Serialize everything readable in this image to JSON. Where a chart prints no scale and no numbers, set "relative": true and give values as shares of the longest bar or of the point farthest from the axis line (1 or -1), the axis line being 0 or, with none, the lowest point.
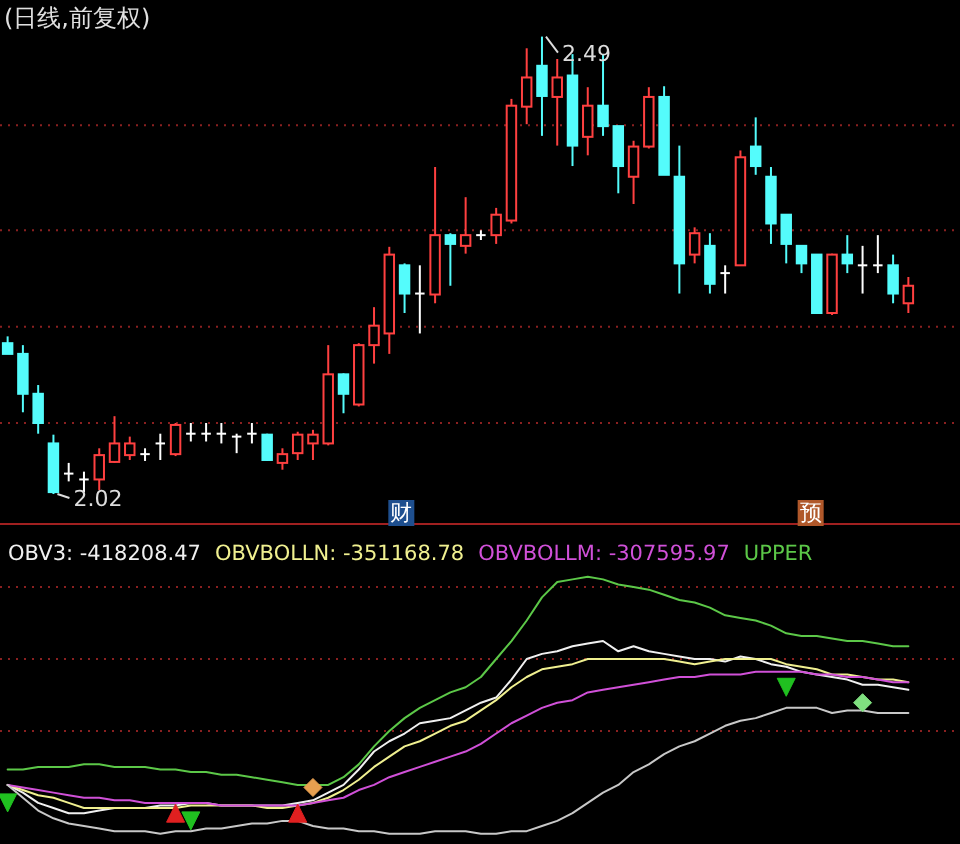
{
  "chart_data": [
    {
      "type": "candlestick",
      "title": "(日线,前复权)",
      "categories": [
        null,
        null,
        null,
        null,
        null,
        null,
        null,
        null,
        null,
        null,
        null,
        null,
        null,
        null,
        null,
        null,
        null,
        null,
        null,
        null,
        null,
        null,
        null,
        null,
        null,
        null,
        null,
        null,
        null,
        null,
        null,
        null,
        null,
        null,
        null,
        null,
        null,
        null,
        null,
        null,
        null,
        null,
        null,
        null,
        null,
        null,
        null,
        null,
        null,
        null,
        null,
        null,
        null,
        null,
        null,
        null,
        null,
        null,
        null,
        null
      ],
      "ohlc": [
        [
          2.175,
          2.182,
          2.164,
          2.164
        ],
        [
          2.164,
          2.173,
          2.104,
          2.123
        ],
        [
          2.123,
          2.132,
          2.082,
          2.093
        ],
        [
          2.072,
          2.081,
          2.02,
          2.022
        ],
        [
          2.041,
          2.052,
          2.033,
          2.041
        ],
        [
          2.035,
          2.043,
          2.022,
          2.035
        ],
        [
          2.035,
          2.067,
          2.024,
          2.06
        ],
        [
          2.053,
          2.1,
          2.052,
          2.072
        ],
        [
          2.06,
          2.079,
          2.055,
          2.072
        ],
        [
          2.061,
          2.067,
          2.054,
          2.061
        ],
        [
          2.072,
          2.082,
          2.055,
          2.072
        ],
        [
          2.061,
          2.093,
          2.059,
          2.091
        ],
        [
          2.082,
          2.093,
          2.074,
          2.082
        ],
        [
          2.082,
          2.093,
          2.074,
          2.082
        ],
        [
          2.082,
          2.093,
          2.072,
          2.082
        ],
        [
          2.079,
          2.082,
          2.062,
          2.079
        ],
        [
          2.082,
          2.093,
          2.072,
          2.082
        ],
        [
          2.081,
          2.082,
          2.054,
          2.055
        ],
        [
          2.052,
          2.067,
          2.045,
          2.061
        ],
        [
          2.062,
          2.084,
          2.055,
          2.081
        ],
        [
          2.072,
          2.086,
          2.055,
          2.081
        ],
        [
          2.072,
          2.173,
          2.07,
          2.143
        ],
        [
          2.143,
          2.144,
          2.103,
          2.123
        ],
        [
          2.112,
          2.175,
          2.11,
          2.173
        ],
        [
          2.173,
          2.212,
          2.154,
          2.193
        ],
        [
          2.185,
          2.274,
          2.164,
          2.266
        ],
        [
          2.255,
          2.257,
          2.206,
          2.226
        ],
        [
          2.226,
          2.255,
          2.185,
          2.226
        ],
        [
          2.225,
          2.356,
          2.216,
          2.286
        ],
        [
          2.286,
          2.288,
          2.234,
          2.277
        ],
        [
          2.275,
          2.325,
          2.267,
          2.286
        ],
        [
          2.286,
          2.291,
          2.281,
          2.286
        ],
        [
          2.286,
          2.314,
          2.277,
          2.307
        ],
        [
          2.301,
          2.426,
          2.298,
          2.419
        ],
        [
          2.418,
          2.478,
          2.4,
          2.448
        ],
        [
          2.46,
          2.49,
          2.388,
          2.429
        ],
        [
          2.428,
          2.467,
          2.378,
          2.448
        ],
        [
          2.45,
          2.472,
          2.357,
          2.378
        ],
        [
          2.387,
          2.438,
          2.368,
          2.419
        ],
        [
          2.419,
          2.472,
          2.388,
          2.398
        ],
        [
          2.398,
          2.398,
          2.329,
          2.357
        ],
        [
          2.346,
          2.383,
          2.318,
          2.377
        ],
        [
          2.377,
          2.438,
          2.375,
          2.428
        ],
        [
          2.428,
          2.439,
          2.348,
          2.348
        ],
        [
          2.346,
          2.378,
          2.226,
          2.257
        ],
        [
          2.266,
          2.294,
          2.257,
          2.288
        ],
        [
          2.275,
          2.288,
          2.226,
          2.236
        ],
        [
          2.247,
          2.255,
          2.226,
          2.247
        ],
        [
          2.255,
          2.373,
          2.255,
          2.366
        ],
        [
          2.377,
          2.407,
          2.348,
          2.357
        ],
        [
          2.346,
          2.356,
          2.277,
          2.298
        ],
        [
          2.307,
          2.307,
          2.257,
          2.277
        ],
        [
          2.275,
          2.275,
          2.247,
          2.257
        ],
        [
          2.266,
          2.266,
          2.206,
          2.206
        ],
        [
          2.206,
          2.267,
          2.204,
          2.266
        ],
        [
          2.266,
          2.286,
          2.247,
          2.257
        ],
        [
          2.255,
          2.275,
          2.226,
          2.255
        ],
        [
          2.255,
          2.286,
          2.247,
          2.255
        ],
        [
          2.255,
          2.266,
          2.216,
          2.226
        ],
        [
          2.216,
          2.243,
          2.206,
          2.234
        ]
      ],
      "yticks": [
        {
          "value": 2.399,
          "label": null
        },
        {
          "value": 2.291,
          "label": null
        },
        {
          "value": 2.192,
          "label": null
        },
        {
          "value": 2.093,
          "label": null
        }
      ],
      "grid": true,
      "annotations": [
        "2.49",
        "2.02",
        "财",
        "预"
      ]
    },
    {
      "type": "line",
      "relative": true,
      "legend": "top",
      "ref_lines": [
        {
          "axis": "y",
          "value": 0.96,
          "color": "#8a2020",
          "line_style": "dotted"
        },
        {
          "axis": "y",
          "value": 0.68,
          "color": "#8a2020",
          "line_style": "dotted"
        },
        {
          "axis": "y",
          "value": 0.4,
          "color": "#8a2020",
          "line_style": "dotted"
        }
      ],
      "categories": [
        null,
        null,
        null,
        null,
        null,
        null,
        null,
        null,
        null,
        null,
        null,
        null,
        null,
        null,
        null,
        null,
        null,
        null,
        null,
        null,
        null,
        null,
        null,
        null,
        null,
        null,
        null,
        null,
        null,
        null,
        null,
        null,
        null,
        null,
        null,
        null,
        null,
        null,
        null,
        null,
        null,
        null,
        null,
        null,
        null,
        null,
        null,
        null,
        null,
        null,
        null,
        null,
        null,
        null,
        null,
        null,
        null,
        null,
        null,
        null
      ],
      "series": [
        {
          "name": "OBV3: -418208.47",
          "color": "#f0f0f0",
          "values": [
            0.19,
            0.16,
            0.12,
            0.1,
            0.08,
            0.08,
            0.09,
            0.1,
            0.1,
            0.1,
            0.11,
            0.11,
            0.12,
            0.12,
            0.11,
            0.11,
            0.11,
            0.11,
            0.11,
            0.12,
            0.13,
            0.16,
            0.19,
            0.25,
            0.32,
            0.36,
            0.39,
            0.43,
            0.44,
            0.45,
            0.48,
            0.51,
            0.53,
            0.6,
            0.68,
            0.7,
            0.71,
            0.73,
            0.74,
            0.75,
            0.71,
            0.73,
            0.71,
            0.7,
            0.69,
            0.68,
            0.68,
            0.67,
            0.69,
            0.68,
            0.66,
            0.65,
            0.63,
            0.62,
            0.61,
            0.6,
            0.58,
            0.58,
            0.57,
            0.56
          ]
        },
        {
          "name": "OBVBOLLN: -351168.78",
          "color": "#f0f090",
          "values": [
            0.19,
            0.17,
            0.15,
            0.14,
            0.12,
            0.1,
            0.1,
            0.1,
            0.1,
            0.1,
            0.1,
            0.1,
            0.11,
            0.11,
            0.11,
            0.11,
            0.11,
            0.1,
            0.1,
            0.11,
            0.12,
            0.14,
            0.17,
            0.21,
            0.26,
            0.3,
            0.34,
            0.36,
            0.39,
            0.42,
            0.44,
            0.48,
            0.52,
            0.57,
            0.61,
            0.64,
            0.65,
            0.66,
            0.68,
            0.68,
            0.68,
            0.68,
            0.68,
            0.68,
            0.67,
            0.66,
            0.67,
            0.68,
            0.68,
            0.68,
            0.68,
            0.66,
            0.65,
            0.64,
            0.62,
            0.62,
            0.61,
            0.6,
            0.6,
            0.59
          ]
        },
        {
          "name": "OBVBOLLM: -307595.97",
          "color": "#d050d8",
          "values": [
            0.19,
            0.18,
            0.17,
            0.16,
            0.15,
            0.14,
            0.14,
            0.13,
            0.13,
            0.12,
            0.12,
            0.12,
            0.12,
            0.12,
            0.11,
            0.11,
            0.11,
            0.11,
            0.11,
            0.11,
            0.12,
            0.13,
            0.14,
            0.17,
            0.19,
            0.22,
            0.24,
            0.26,
            0.28,
            0.3,
            0.32,
            0.35,
            0.39,
            0.43,
            0.46,
            0.49,
            0.51,
            0.52,
            0.55,
            0.56,
            0.57,
            0.58,
            0.59,
            0.6,
            0.61,
            0.61,
            0.62,
            0.62,
            0.62,
            0.63,
            0.63,
            0.63,
            0.63,
            0.62,
            0.62,
            0.61,
            0.61,
            0.6,
            0.59,
            0.59
          ]
        },
        {
          "name": "UPPER",
          "color": "#5cc848",
          "values": [
            0.25,
            0.25,
            0.26,
            0.26,
            0.26,
            0.27,
            0.27,
            0.26,
            0.26,
            0.26,
            0.25,
            0.25,
            0.24,
            0.24,
            0.23,
            0.23,
            0.22,
            0.21,
            0.2,
            0.19,
            0.19,
            0.19,
            0.22,
            0.27,
            0.34,
            0.4,
            0.45,
            0.49,
            0.52,
            0.55,
            0.57,
            0.61,
            0.68,
            0.75,
            0.83,
            0.92,
            0.98,
            0.99,
            1,
            0.99,
            0.97,
            0.96,
            0.95,
            0.93,
            0.91,
            0.9,
            0.88,
            0.85,
            0.84,
            0.83,
            0.81,
            0.78,
            0.77,
            0.77,
            0.76,
            0.75,
            0.75,
            0.74,
            0.73,
            0.73
          ]
        },
        {
          "color": "#c8c8c8",
          "values": [
            0.19,
            0.14,
            0.09,
            0.06,
            0.04,
            0.03,
            0.02,
            0.01,
            0.01,
            0.01,
            0,
            0.01,
            0.01,
            0.02,
            0.02,
            0.03,
            0.04,
            0.04,
            0.05,
            0.05,
            0.03,
            0.02,
            0.02,
            0.01,
            0.01,
            0,
            0,
            0,
            0.01,
            0.01,
            0.01,
            0,
            0,
            0.01,
            0.01,
            0.03,
            0.05,
            0.08,
            0.12,
            0.16,
            0.19,
            0.24,
            0.27,
            0.31,
            0.34,
            0.36,
            0.39,
            0.42,
            0.44,
            0.45,
            0.47,
            0.49,
            0.49,
            0.49,
            0.47,
            0.48,
            0.48,
            0.47,
            0.47,
            0.47
          ]
        },
        {
          "type": "scatter",
          "marker": "triangle",
          "color": "#e02020",
          "values": [
            null,
            null,
            null,
            null,
            null,
            null,
            null,
            null,
            null,
            null,
            null,
            0.08,
            null,
            null,
            null,
            null,
            null,
            null,
            null,
            0.08,
            null,
            null,
            null,
            null,
            null,
            null,
            null,
            null,
            null,
            null,
            null,
            null,
            null,
            null,
            null,
            null,
            null,
            null,
            null,
            null,
            null,
            null,
            null,
            null,
            null,
            null,
            null,
            null,
            null,
            null,
            null,
            null,
            null,
            null,
            null,
            null,
            null,
            null,
            null,
            null
          ]
        },
        {
          "type": "scatter",
          "marker": "triangle_down",
          "color": "#20c020",
          "values": [
            0.12,
            null,
            null,
            null,
            null,
            null,
            null,
            null,
            null,
            null,
            null,
            null,
            0.05,
            null,
            null,
            null,
            null,
            null,
            null,
            null,
            null,
            null,
            null,
            null,
            null,
            null,
            null,
            null,
            null,
            null,
            null,
            null,
            null,
            null,
            null,
            null,
            null,
            null,
            null,
            null,
            null,
            null,
            null,
            null,
            null,
            null,
            null,
            null,
            null,
            null,
            null,
            0.57,
            null,
            null,
            null,
            null,
            null,
            null,
            null,
            null
          ]
        },
        {
          "type": "scatter",
          "marker": "diamond",
          "colors": [
            null,
            null,
            null,
            null,
            null,
            null,
            null,
            null,
            null,
            null,
            null,
            null,
            null,
            null,
            null,
            null,
            null,
            null,
            null,
            null,
            "#e8a050",
            null,
            null,
            null,
            null,
            null,
            null,
            null,
            null,
            null,
            null,
            null,
            null,
            null,
            null,
            null,
            null,
            null,
            null,
            null,
            null,
            null,
            null,
            null,
            null,
            null,
            null,
            null,
            null,
            null,
            null,
            null,
            null,
            null,
            null,
            null,
            "#80e080",
            null,
            null,
            null
          ],
          "values": [
            null,
            null,
            null,
            null,
            null,
            null,
            null,
            null,
            null,
            null,
            null,
            null,
            null,
            null,
            null,
            null,
            null,
            null,
            null,
            null,
            0.18,
            null,
            null,
            null,
            null,
            null,
            null,
            null,
            null,
            null,
            null,
            null,
            null,
            null,
            null,
            null,
            null,
            null,
            null,
            null,
            null,
            null,
            null,
            null,
            null,
            null,
            null,
            null,
            null,
            null,
            null,
            null,
            null,
            null,
            null,
            null,
            0.51,
            null,
            null,
            null
          ]
        }
      ]
    }
  ]
}
